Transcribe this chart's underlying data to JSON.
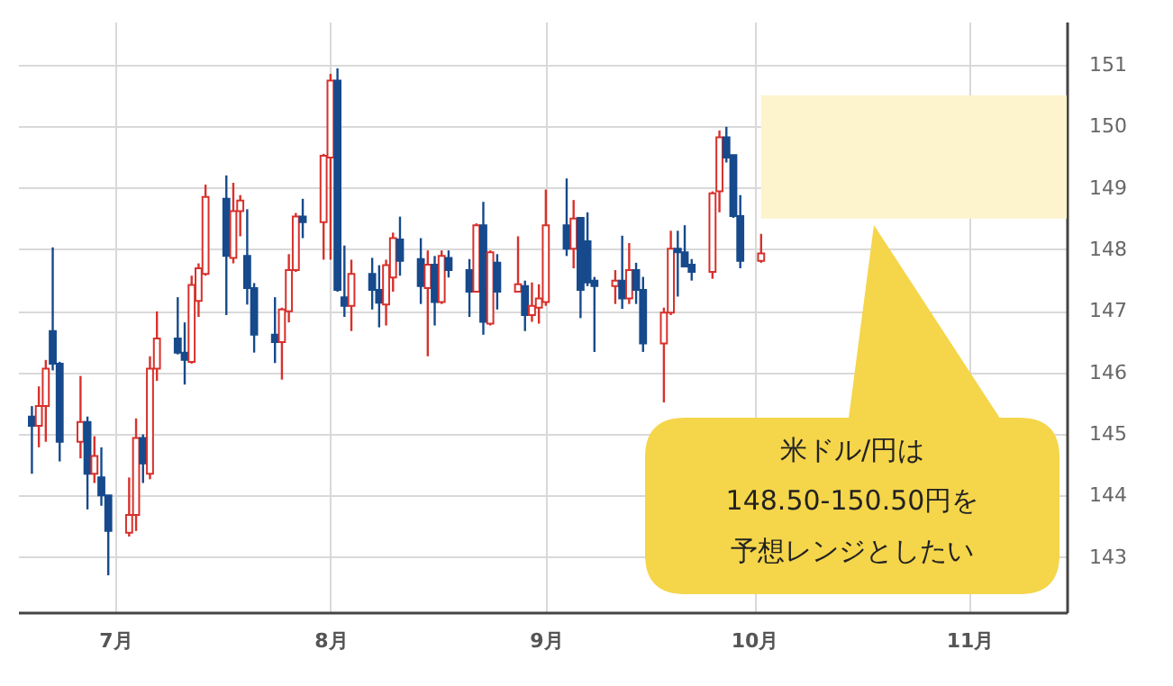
{
  "chart_data": {
    "type": "candlestick",
    "x": [
      "--06-19",
      "--06-20",
      "--06-21",
      "--06-22",
      "--06-23",
      "--06-26",
      "--06-27",
      "--06-28",
      "--06-29",
      "--06-30",
      "--07-03",
      "--07-04",
      "--07-05",
      "--07-06",
      "--07-07",
      "--07-10",
      "--07-11",
      "--07-12",
      "--07-13",
      "--07-14",
      "--07-17",
      "--07-18",
      "--07-19",
      "--07-20",
      "--07-21",
      "--07-24",
      "--07-25",
      "--07-26",
      "--07-27",
      "--07-28",
      "--07-31",
      "--08-01",
      "--08-02",
      "--08-03",
      "--08-04",
      "--08-07",
      "--08-08",
      "--08-09",
      "--08-10",
      "--08-11",
      "--08-14",
      "--08-15",
      "--08-16",
      "--08-17",
      "--08-18",
      "--08-21",
      "--08-22",
      "--08-23",
      "--08-24",
      "--08-25",
      "--08-28",
      "--08-29",
      "--08-30",
      "--08-31",
      "--09-01",
      "--09-04",
      "--09-05",
      "--09-06",
      "--09-07",
      "--09-08",
      "--09-11",
      "--09-12",
      "--09-13",
      "--09-14",
      "--09-15",
      "--09-18",
      "--09-19",
      "--09-20",
      "--09-21",
      "--09-22",
      "--09-25",
      "--09-26",
      "--09-27",
      "--09-28",
      "--09-29",
      "--10-02"
    ],
    "ohlc": [
      [
        145.28,
        145.45,
        144.35,
        145.13
      ],
      [
        145.13,
        145.77,
        144.78,
        145.45
      ],
      [
        145.45,
        146.2,
        144.87,
        146.06
      ],
      [
        146.67,
        148.03,
        146.03,
        146.14
      ],
      [
        146.14,
        146.17,
        144.55,
        144.87
      ],
      [
        144.87,
        145.94,
        144.6,
        145.19
      ],
      [
        145.19,
        145.28,
        143.77,
        144.35
      ],
      [
        144.35,
        144.96,
        144.2,
        144.64
      ],
      [
        144.29,
        144.78,
        143.83,
        144.0
      ],
      [
        144.0,
        144.0,
        142.7,
        143.42
      ],
      [
        143.39,
        144.29,
        143.33,
        143.68
      ],
      [
        143.68,
        145.25,
        143.42,
        144.93
      ],
      [
        144.93,
        144.99,
        144.2,
        144.52
      ],
      [
        144.35,
        146.26,
        144.26,
        146.06
      ],
      [
        146.06,
        146.99,
        145.86,
        146.55
      ],
      [
        146.55,
        147.22,
        146.29,
        146.32
      ],
      [
        146.32,
        146.81,
        145.8,
        146.2
      ],
      [
        146.17,
        147.57,
        146.14,
        147.42
      ],
      [
        147.16,
        147.77,
        146.9,
        147.69
      ],
      [
        147.6,
        149.05,
        147.57,
        148.85
      ],
      [
        148.82,
        149.2,
        146.93,
        147.89
      ],
      [
        147.86,
        149.08,
        147.77,
        148.62
      ],
      [
        148.62,
        148.88,
        148.21,
        148.79
      ],
      [
        147.89,
        148.65,
        147.1,
        147.37
      ],
      [
        147.37,
        147.45,
        146.32,
        146.61
      ],
      [
        146.61,
        147.22,
        146.15,
        146.49
      ],
      [
        146.49,
        147.05,
        145.88,
        147.02
      ],
      [
        146.99,
        147.92,
        146.81,
        147.66
      ],
      [
        147.66,
        148.59,
        147.63,
        148.53
      ],
      [
        148.53,
        148.82,
        148.18,
        148.44
      ],
      [
        148.44,
        149.55,
        147.83,
        149.52
      ],
      [
        149.49,
        150.85,
        147.83,
        150.74
      ],
      [
        150.74,
        150.94,
        147.31,
        147.34
      ],
      [
        147.22,
        148.06,
        146.9,
        147.08
      ],
      [
        147.08,
        147.83,
        146.67,
        147.6
      ],
      [
        147.6,
        147.86,
        147.02,
        147.34
      ],
      [
        147.34,
        147.74,
        146.73,
        147.13
      ],
      [
        147.1,
        147.83,
        146.76,
        147.74
      ],
      [
        147.54,
        148.27,
        147.31,
        148.18
      ],
      [
        148.16,
        148.53,
        147.57,
        147.81
      ],
      [
        147.84,
        148.18,
        147.11,
        147.4
      ],
      [
        147.37,
        147.98,
        146.26,
        147.75
      ],
      [
        147.75,
        147.89,
        146.76,
        147.14
      ],
      [
        147.14,
        147.98,
        147.11,
        147.89
      ],
      [
        147.86,
        147.98,
        147.54,
        147.66
      ],
      [
        147.66,
        147.84,
        146.9,
        147.31
      ],
      [
        147.31,
        148.42,
        147.31,
        148.39
      ],
      [
        148.39,
        148.77,
        146.61,
        146.82
      ],
      [
        146.79,
        147.98,
        146.76,
        147.95
      ],
      [
        147.78,
        147.92,
        147.02,
        147.31
      ],
      [
        147.31,
        148.21,
        147.31,
        147.43
      ],
      [
        147.4,
        147.49,
        146.67,
        146.93
      ],
      [
        146.93,
        147.46,
        146.82,
        147.08
      ],
      [
        147.05,
        147.43,
        146.79,
        147.2
      ],
      [
        147.14,
        148.97,
        147.08,
        148.39
      ],
      [
        148.39,
        149.15,
        147.89,
        148.01
      ],
      [
        148.01,
        148.8,
        147.69,
        148.5
      ],
      [
        148.51,
        148.51,
        146.88,
        147.34
      ],
      [
        148.13,
        148.6,
        147.4,
        147.46
      ],
      [
        147.49,
        147.55,
        146.33,
        147.4
      ],
      [
        147.4,
        147.66,
        147.11,
        147.49
      ],
      [
        147.49,
        148.22,
        147.03,
        147.2
      ],
      [
        147.2,
        148.1,
        147.11,
        147.66
      ],
      [
        147.66,
        147.78,
        147.11,
        147.34
      ],
      [
        147.34,
        147.55,
        146.33,
        146.47
      ],
      [
        146.47,
        147.05,
        145.51,
        146.97
      ],
      [
        146.97,
        148.3,
        146.93,
        148.01
      ],
      [
        148.01,
        148.3,
        147.23,
        147.95
      ],
      [
        147.95,
        148.39,
        147.72,
        147.72
      ],
      [
        147.75,
        147.84,
        147.49,
        147.63
      ],
      [
        147.63,
        148.94,
        147.52,
        148.91
      ],
      [
        148.94,
        149.93,
        148.6,
        149.82
      ],
      [
        149.82,
        149.99,
        149.41,
        149.49
      ],
      [
        149.53,
        149.53,
        148.51,
        148.54
      ],
      [
        148.54,
        148.88,
        147.69,
        147.81
      ],
      [
        147.81,
        148.25,
        147.78,
        147.93
      ]
    ],
    "xlim": [
      "--06-17",
      "--11-15"
    ],
    "xticks": [
      {
        "value": "--07-01",
        "label": "7月"
      },
      {
        "value": "--08-01",
        "label": "8月"
      },
      {
        "value": "--09-01",
        "label": "9月"
      },
      {
        "value": "--10-01",
        "label": "10月"
      },
      {
        "value": "--11-01",
        "label": "11月"
      }
    ],
    "ylim": [
      142.1,
      151.7
    ],
    "yticks": [
      143,
      144,
      145,
      146,
      147,
      148,
      149,
      150,
      151
    ],
    "grid": true,
    "bands": [
      {
        "axis": "y",
        "from": 148.5,
        "to": 150.5,
        "color": "#fdf3cc"
      }
    ],
    "annotations": [
      "米ドル/円は",
      "148.50-150.50円を",
      "予想レンジとしたい"
    ]
  }
}
